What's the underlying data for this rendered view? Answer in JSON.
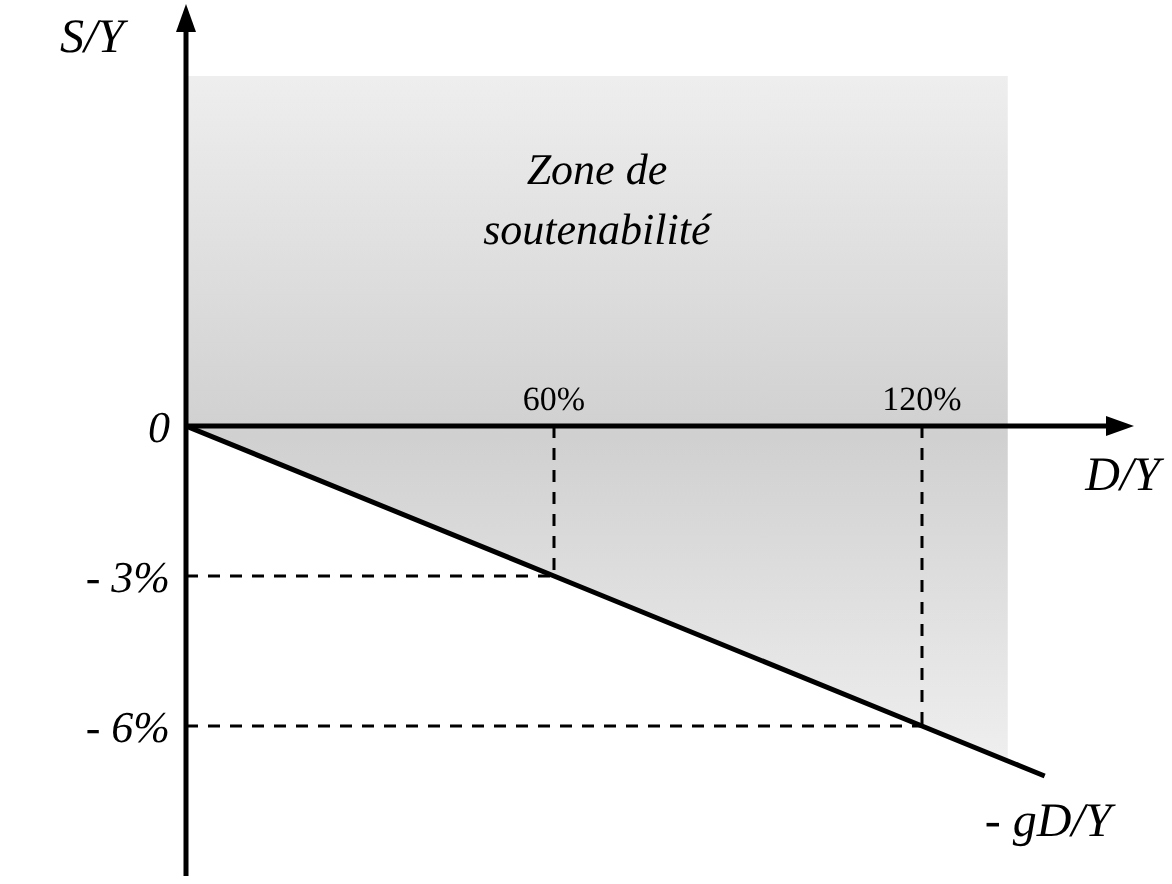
{
  "chart_data": {
    "type": "line",
    "xlabel": "D/Y",
    "ylabel": "S/Y",
    "series": [
      {
        "name": "- gD/Y",
        "color": "#000000",
        "x": [
          0,
          60,
          120,
          140
        ],
        "values": [
          0,
          -3,
          -6,
          -7
        ]
      }
    ],
    "bands": [
      {
        "axis": "x",
        "from": 0,
        "to": 134,
        "label": "Zone de soutenabilité",
        "color": "#d0d0d0"
      }
    ],
    "xlim": [
      0,
      150
    ],
    "xticks": [
      {
        "value": 60,
        "label": "60%"
      },
      {
        "value": 120,
        "label": "120%"
      }
    ],
    "ylim": [
      -9,
      7
    ],
    "yticks": [
      0,
      {
        "value": -3,
        "label": "- 3%"
      },
      {
        "value": -6,
        "label": "- 6%"
      }
    ],
    "ref_lines": [
      {
        "axis": "x",
        "value": 60,
        "color": "#000000",
        "line_style": "dashed"
      },
      {
        "axis": "x",
        "value": 120,
        "color": "#000000",
        "line_style": "dashed"
      },
      {
        "axis": "y",
        "value": -3,
        "color": "#000000",
        "line_style": "dashed"
      },
      {
        "axis": "y",
        "value": -6,
        "color": "#000000",
        "line_style": "dashed"
      }
    ],
    "marker": "none",
    "line_style": "solid"
  }
}
